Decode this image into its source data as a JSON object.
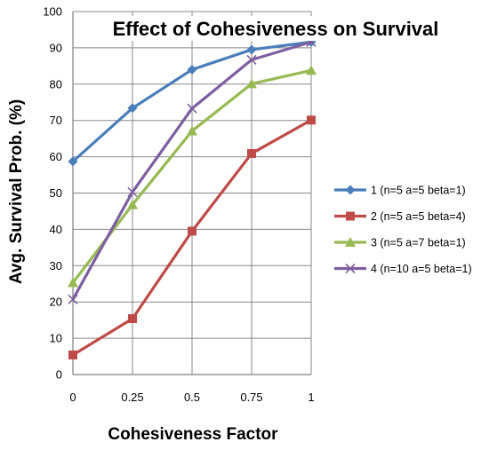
{
  "chart_data": {
    "type": "line",
    "title": "Effect of Cohesiveness on Survival",
    "xlabel": "Cohesiveness Factor",
    "ylabel": "Avg. Survival Prob. (%)",
    "x": [
      0,
      0.25,
      0.5,
      0.75,
      1
    ],
    "x_tick_labels": [
      "0",
      "0.25",
      "0.5",
      "0.75",
      "1"
    ],
    "ylim": [
      0,
      100
    ],
    "y_ticks": [
      0,
      10,
      20,
      30,
      40,
      50,
      60,
      70,
      80,
      90,
      100
    ],
    "grid": "vertical and horizontal",
    "legend_position": "right",
    "series": [
      {
        "name": "1 (n=5 a=5 beta=1)",
        "marker": "diamond",
        "color": "#4A7EBB",
        "values": [
          58.7,
          73.4,
          84.0,
          89.5,
          91.6
        ]
      },
      {
        "name": "2 (n=5 a=5 beta=4)",
        "marker": "square",
        "color": "#BE4B48",
        "values": [
          5.4,
          15.4,
          39.5,
          60.9,
          70.1
        ]
      },
      {
        "name": "3 (n=5 a=7 beta=1)",
        "marker": "triangle",
        "color": "#98B954",
        "values": [
          25.3,
          46.8,
          67.1,
          80.1,
          83.8
        ]
      },
      {
        "name": "4 (n=10 a=5 beta=1)",
        "marker": "x",
        "color": "#7D5FA0",
        "values": [
          20.7,
          50.3,
          73.3,
          86.7,
          91.6
        ]
      }
    ]
  }
}
